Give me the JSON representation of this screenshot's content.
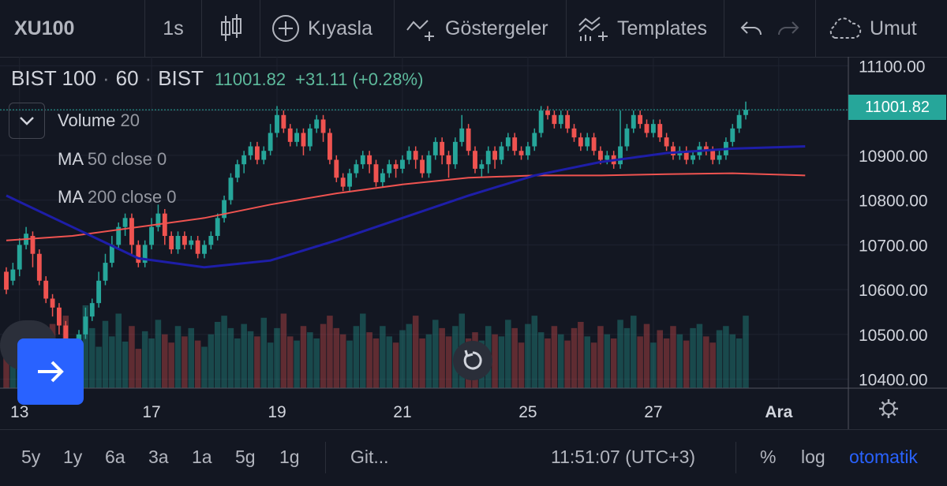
{
  "toolbar": {
    "symbol": "XU100",
    "interval": "1s",
    "compare_label": "Kıyasla",
    "indicators_label": "Göstergeler",
    "templates_label": "Templates",
    "cloud_label": "Umut",
    "icons": [
      "candles-icon",
      "plus-circle-icon",
      "indicators-icon",
      "templates-icon",
      "undo-icon",
      "redo-icon",
      "cloud-icon"
    ]
  },
  "legend": {
    "name": "BIST 100",
    "interval": "60",
    "exchange": "BIST",
    "last": "11001.82",
    "change": "+31.11 (+0.28%)",
    "color_up": "#26a69a",
    "color_down": "#ef5350"
  },
  "indicators": [
    {
      "name": "Volume",
      "params": "20"
    },
    {
      "name": "MA",
      "params": "50 close 0"
    },
    {
      "name": "MA",
      "params": "200 close 0"
    }
  ],
  "price_axis": {
    "current_label": "11001.82",
    "ticks": [
      "11100.00",
      "11000.00",
      "10900.00",
      "10800.00",
      "10700.00",
      "10600.00",
      "10500.00",
      "10400.00"
    ]
  },
  "time_axis": {
    "labels": [
      "13",
      "17",
      "19",
      "21",
      "25",
      "27",
      "Ara"
    ]
  },
  "bottom": {
    "ranges": [
      "5y",
      "1y",
      "6a",
      "3a",
      "1a",
      "5g",
      "1g"
    ],
    "goto_label": "Git...",
    "clock": "11:51:07 (UTC+3)",
    "percent_label": "%",
    "log_label": "log",
    "auto_label": "otomatik",
    "auto_color": "#2962ff"
  },
  "chart_data": {
    "type": "candlestick",
    "price_range": [
      10380,
      11120
    ],
    "hline": 11001.82,
    "time_ticks": [
      {
        "label": "13",
        "i": 2
      },
      {
        "label": "17",
        "i": 22
      },
      {
        "label": "19",
        "i": 41
      },
      {
        "label": "21",
        "i": 60
      },
      {
        "label": "25",
        "i": 79
      },
      {
        "label": "27",
        "i": 98
      },
      {
        "label": "Ara",
        "i": 117
      }
    ],
    "candles": [
      [
        10640,
        10600,
        10650,
        10590
      ],
      [
        10620,
        10645,
        10660,
        10610
      ],
      [
        10645,
        10700,
        10715,
        10630
      ],
      [
        10700,
        10725,
        10740,
        10690
      ],
      [
        10720,
        10680,
        10730,
        10650
      ],
      [
        10680,
        10620,
        10690,
        10610
      ],
      [
        10620,
        10580,
        10630,
        10570
      ],
      [
        10580,
        10560,
        10590,
        10540
      ],
      [
        10560,
        10520,
        10570,
        10500
      ],
      [
        10520,
        10480,
        10530,
        10460
      ],
      [
        10480,
        10460,
        10490,
        10440
      ],
      [
        10460,
        10500,
        10510,
        10450
      ],
      [
        10500,
        10540,
        10560,
        10490
      ],
      [
        10540,
        10570,
        10580,
        10530
      ],
      [
        10570,
        10620,
        10640,
        10560
      ],
      [
        10620,
        10660,
        10680,
        10610
      ],
      [
        10660,
        10700,
        10720,
        10650
      ],
      [
        10700,
        10740,
        10750,
        10690
      ],
      [
        10740,
        10760,
        10770,
        10720
      ],
      [
        10760,
        10700,
        10770,
        10680
      ],
      [
        10700,
        10660,
        10710,
        10650
      ],
      [
        10660,
        10700,
        10710,
        10650
      ],
      [
        10700,
        10740,
        10760,
        10690
      ],
      [
        10740,
        10770,
        10790,
        10730
      ],
      [
        10770,
        10720,
        10780,
        10700
      ],
      [
        10720,
        10690,
        10730,
        10680
      ],
      [
        10690,
        10720,
        10730,
        10680
      ],
      [
        10720,
        10700,
        10730,
        10690
      ],
      [
        10700,
        10710,
        10720,
        10690
      ],
      [
        10710,
        10680,
        10720,
        10670
      ],
      [
        10680,
        10700,
        10710,
        10670
      ],
      [
        10700,
        10720,
        10730,
        10690
      ],
      [
        10720,
        10760,
        10770,
        10710
      ],
      [
        10760,
        10800,
        10810,
        10750
      ],
      [
        10800,
        10850,
        10860,
        10790
      ],
      [
        10850,
        10880,
        10890,
        10840
      ],
      [
        10880,
        10900,
        10910,
        10860
      ],
      [
        10900,
        10920,
        10930,
        10890
      ],
      [
        10920,
        10890,
        10930,
        10880
      ],
      [
        10890,
        10910,
        10920,
        10880
      ],
      [
        10910,
        10950,
        10970,
        10900
      ],
      [
        10950,
        10990,
        11010,
        10940
      ],
      [
        10990,
        10960,
        11000,
        10950
      ],
      [
        10960,
        10930,
        10970,
        10920
      ],
      [
        10930,
        10950,
        10960,
        10920
      ],
      [
        10950,
        10920,
        10960,
        10900
      ],
      [
        10920,
        10960,
        10970,
        10910
      ],
      [
        10960,
        10980,
        10990,
        10950
      ],
      [
        10980,
        10950,
        10990,
        10930
      ],
      [
        10950,
        10890,
        10960,
        10880
      ],
      [
        10890,
        10850,
        10900,
        10840
      ],
      [
        10850,
        10830,
        10860,
        10820
      ],
      [
        10830,
        10860,
        10870,
        10820
      ],
      [
        10860,
        10880,
        10890,
        10850
      ],
      [
        10880,
        10900,
        10910,
        10870
      ],
      [
        10900,
        10880,
        10910,
        10860
      ],
      [
        10880,
        10840,
        10890,
        10830
      ],
      [
        10840,
        10860,
        10870,
        10830
      ],
      [
        10860,
        10880,
        10890,
        10850
      ],
      [
        10880,
        10870,
        10890,
        10850
      ],
      [
        10870,
        10890,
        10900,
        10860
      ],
      [
        10890,
        10910,
        10920,
        10880
      ],
      [
        10910,
        10890,
        10920,
        10870
      ],
      [
        10890,
        10860,
        10900,
        10850
      ],
      [
        10860,
        10900,
        10910,
        10850
      ],
      [
        10900,
        10930,
        10940,
        10890
      ],
      [
        10930,
        10900,
        10940,
        10880
      ],
      [
        10900,
        10880,
        10910,
        10850
      ],
      [
        10880,
        10930,
        10940,
        10870
      ],
      [
        10930,
        10960,
        10990,
        10920
      ],
      [
        10960,
        10910,
        10970,
        10900
      ],
      [
        10910,
        10870,
        10920,
        10860
      ],
      [
        10870,
        10880,
        10890,
        10850
      ],
      [
        10880,
        10910,
        10920,
        10860
      ],
      [
        10910,
        10890,
        10920,
        10870
      ],
      [
        10890,
        10920,
        10930,
        10880
      ],
      [
        10920,
        10940,
        10950,
        10910
      ],
      [
        10940,
        10910,
        10950,
        10900
      ],
      [
        10910,
        10900,
        10920,
        10890
      ],
      [
        10900,
        10920,
        10930,
        10890
      ],
      [
        10920,
        10950,
        10960,
        10910
      ],
      [
        10950,
        11000,
        11010,
        10940
      ],
      [
        11000,
        10990,
        11010,
        10980
      ],
      [
        10990,
        10970,
        11000,
        10960
      ],
      [
        10970,
        10990,
        11000,
        10960
      ],
      [
        10990,
        10960,
        11000,
        10950
      ],
      [
        10960,
        10940,
        10970,
        10930
      ],
      [
        10940,
        10920,
        10950,
        10910
      ],
      [
        10920,
        10940,
        10950,
        10910
      ],
      [
        10940,
        10910,
        10950,
        10900
      ],
      [
        10910,
        10890,
        10920,
        10880
      ],
      [
        10890,
        10900,
        10910,
        10880
      ],
      [
        10900,
        10880,
        10910,
        10870
      ],
      [
        10880,
        10920,
        11000,
        10870
      ],
      [
        10920,
        10960,
        10970,
        10910
      ],
      [
        10960,
        10990,
        11000,
        10950
      ],
      [
        10990,
        10970,
        11000,
        10960
      ],
      [
        10970,
        10950,
        10980,
        10940
      ],
      [
        10950,
        10970,
        10980,
        10940
      ],
      [
        10970,
        10940,
        10980,
        10930
      ],
      [
        10940,
        10920,
        10950,
        10910
      ],
      [
        10920,
        10900,
        10930,
        10890
      ],
      [
        10900,
        10910,
        10920,
        10890
      ],
      [
        10910,
        10890,
        10920,
        10880
      ],
      [
        10890,
        10900,
        10910,
        10880
      ],
      [
        10900,
        10920,
        10930,
        10890
      ],
      [
        10920,
        10910,
        10930,
        10900
      ],
      [
        10910,
        10890,
        10920,
        10880
      ],
      [
        10890,
        10900,
        10910,
        10880
      ],
      [
        10900,
        10930,
        10940,
        10890
      ],
      [
        10930,
        10960,
        10970,
        10920
      ],
      [
        10960,
        10990,
        11000,
        10950
      ],
      [
        10990,
        11001.82,
        11020,
        10980
      ]
    ],
    "volumes": [
      35,
      50,
      42,
      60,
      38,
      55,
      40,
      62,
      48,
      70,
      45,
      52,
      80,
      58,
      40,
      65,
      50,
      72,
      45,
      60,
      38,
      55,
      48,
      66,
      52,
      44,
      60,
      50,
      58,
      46,
      40,
      52,
      64,
      70,
      58,
      48,
      62,
      55,
      50,
      68,
      44,
      58,
      72,
      50,
      46,
      60,
      54,
      48,
      62,
      70,
      58,
      52,
      46,
      60,
      72,
      54,
      48,
      60,
      50,
      44,
      56,
      62,
      70,
      48,
      52,
      66,
      58,
      50,
      60,
      72,
      48,
      54,
      46,
      60,
      52,
      50,
      66,
      58,
      44,
      62,
      70,
      54,
      48,
      60,
      52,
      46,
      58,
      64,
      50,
      44,
      60,
      52,
      48,
      66,
      58,
      70,
      50,
      62,
      44,
      56,
      48,
      60,
      52,
      46,
      58,
      62,
      50,
      44,
      56,
      60,
      52,
      48,
      70,
      66,
      54
    ],
    "ma50": [
      [
        0,
        10810
      ],
      [
        10,
        10740
      ],
      [
        20,
        10670
      ],
      [
        30,
        10650
      ],
      [
        40,
        10665
      ],
      [
        50,
        10710
      ],
      [
        60,
        10760
      ],
      [
        70,
        10810
      ],
      [
        80,
        10855
      ],
      [
        90,
        10885
      ],
      [
        100,
        10905
      ],
      [
        110,
        10915
      ],
      [
        121,
        10920
      ]
    ],
    "ma200": [
      [
        0,
        10710
      ],
      [
        10,
        10720
      ],
      [
        20,
        10740
      ],
      [
        30,
        10760
      ],
      [
        40,
        10790
      ],
      [
        50,
        10815
      ],
      [
        60,
        10835
      ],
      [
        70,
        10850
      ],
      [
        80,
        10855
      ],
      [
        90,
        10855
      ],
      [
        100,
        10858
      ],
      [
        110,
        10860
      ],
      [
        121,
        10855
      ]
    ]
  }
}
